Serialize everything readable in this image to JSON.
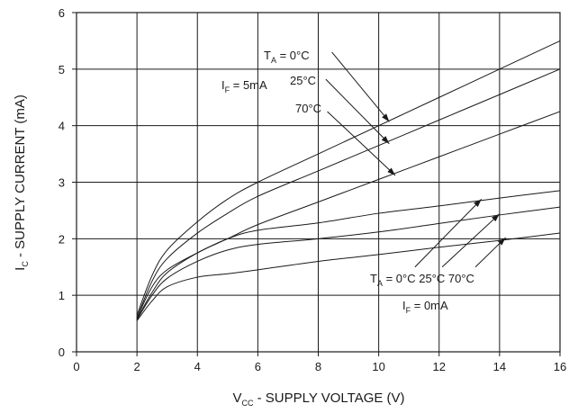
{
  "chart_data": {
    "type": "line",
    "xlabel": {
      "main": "V",
      "sub": "CC",
      "rest": " - SUPPLY VOLTAGE (V)"
    },
    "ylabel": {
      "main": "I",
      "sub": "C",
      "rest": " - SUPPLY CURRENT (mA)"
    },
    "xlim": [
      0,
      16
    ],
    "ylim": [
      0,
      6
    ],
    "x_ticks": [
      "0",
      "2",
      "4",
      "6",
      "8",
      "10",
      "12",
      "14",
      "16"
    ],
    "y_ticks": [
      "0",
      "1",
      "2",
      "3",
      "4",
      "5",
      "6"
    ],
    "grid": true,
    "series": [
      {
        "x": [
          2,
          2.5,
          3,
          4,
          5,
          6,
          8,
          10,
          12,
          14,
          16
        ],
        "y": [
          0.65,
          1.35,
          1.8,
          2.3,
          2.7,
          3.0,
          3.5,
          4.0,
          4.5,
          5.0,
          5.5
        ]
      },
      {
        "x": [
          2,
          2.5,
          3,
          4,
          5,
          6,
          8,
          10,
          12,
          14,
          16
        ],
        "y": [
          0.6,
          1.25,
          1.65,
          2.1,
          2.45,
          2.75,
          3.2,
          3.65,
          4.1,
          4.55,
          5.0
        ]
      },
      {
        "x": [
          2,
          2.5,
          3,
          4,
          5,
          6,
          8,
          10,
          12,
          14,
          16
        ],
        "y": [
          0.58,
          1.05,
          1.4,
          1.75,
          2.0,
          2.25,
          2.65,
          3.05,
          3.45,
          3.85,
          4.25
        ]
      },
      {
        "x": [
          2,
          2.5,
          3,
          4,
          5,
          6,
          8,
          10,
          12,
          14,
          16
        ],
        "y": [
          0.6,
          1.15,
          1.45,
          1.75,
          2.0,
          2.15,
          2.28,
          2.45,
          2.58,
          2.72,
          2.85
        ]
      },
      {
        "x": [
          2,
          2.5,
          3,
          4,
          5,
          6,
          8,
          10,
          12,
          14,
          16
        ],
        "y": [
          0.57,
          1.0,
          1.3,
          1.6,
          1.8,
          1.9,
          2.0,
          2.12,
          2.27,
          2.42,
          2.56
        ]
      },
      {
        "x": [
          2,
          2.5,
          3,
          4,
          5,
          6,
          8,
          10,
          12,
          14,
          16
        ],
        "y": [
          0.55,
          0.9,
          1.15,
          1.32,
          1.38,
          1.45,
          1.6,
          1.72,
          1.85,
          1.97,
          2.1
        ]
      }
    ],
    "annotations": {
      "if_5ma": {
        "main": "I",
        "sub": "F",
        "rest": " = 5mA"
      },
      "ta_0_top": {
        "main": "T",
        "sub": "A",
        "rest": "  = 0°C"
      },
      "t25_top": "25°C",
      "t70_top": "70°C",
      "ta_bottom": {
        "main": "T",
        "sub": "A",
        "rest": " = 0°C 25°C 70°C"
      },
      "if_0ma": {
        "main": "I",
        "sub": "F",
        "rest": " = 0mA"
      }
    },
    "arrows": [
      {
        "from": [
          8.45,
          5.3
        ],
        "to": [
          10.35,
          4.07
        ]
      },
      {
        "from": [
          8.25,
          4.82
        ],
        "to": [
          10.35,
          3.68
        ]
      },
      {
        "from": [
          8.3,
          4.25
        ],
        "to": [
          10.55,
          3.12
        ]
      },
      {
        "from": [
          11.2,
          1.5
        ],
        "to": [
          13.4,
          2.7
        ]
      },
      {
        "from": [
          12.1,
          1.5
        ],
        "to": [
          14.0,
          2.44
        ]
      },
      {
        "from": [
          13.2,
          1.5
        ],
        "to": [
          14.2,
          2.02
        ]
      }
    ]
  }
}
